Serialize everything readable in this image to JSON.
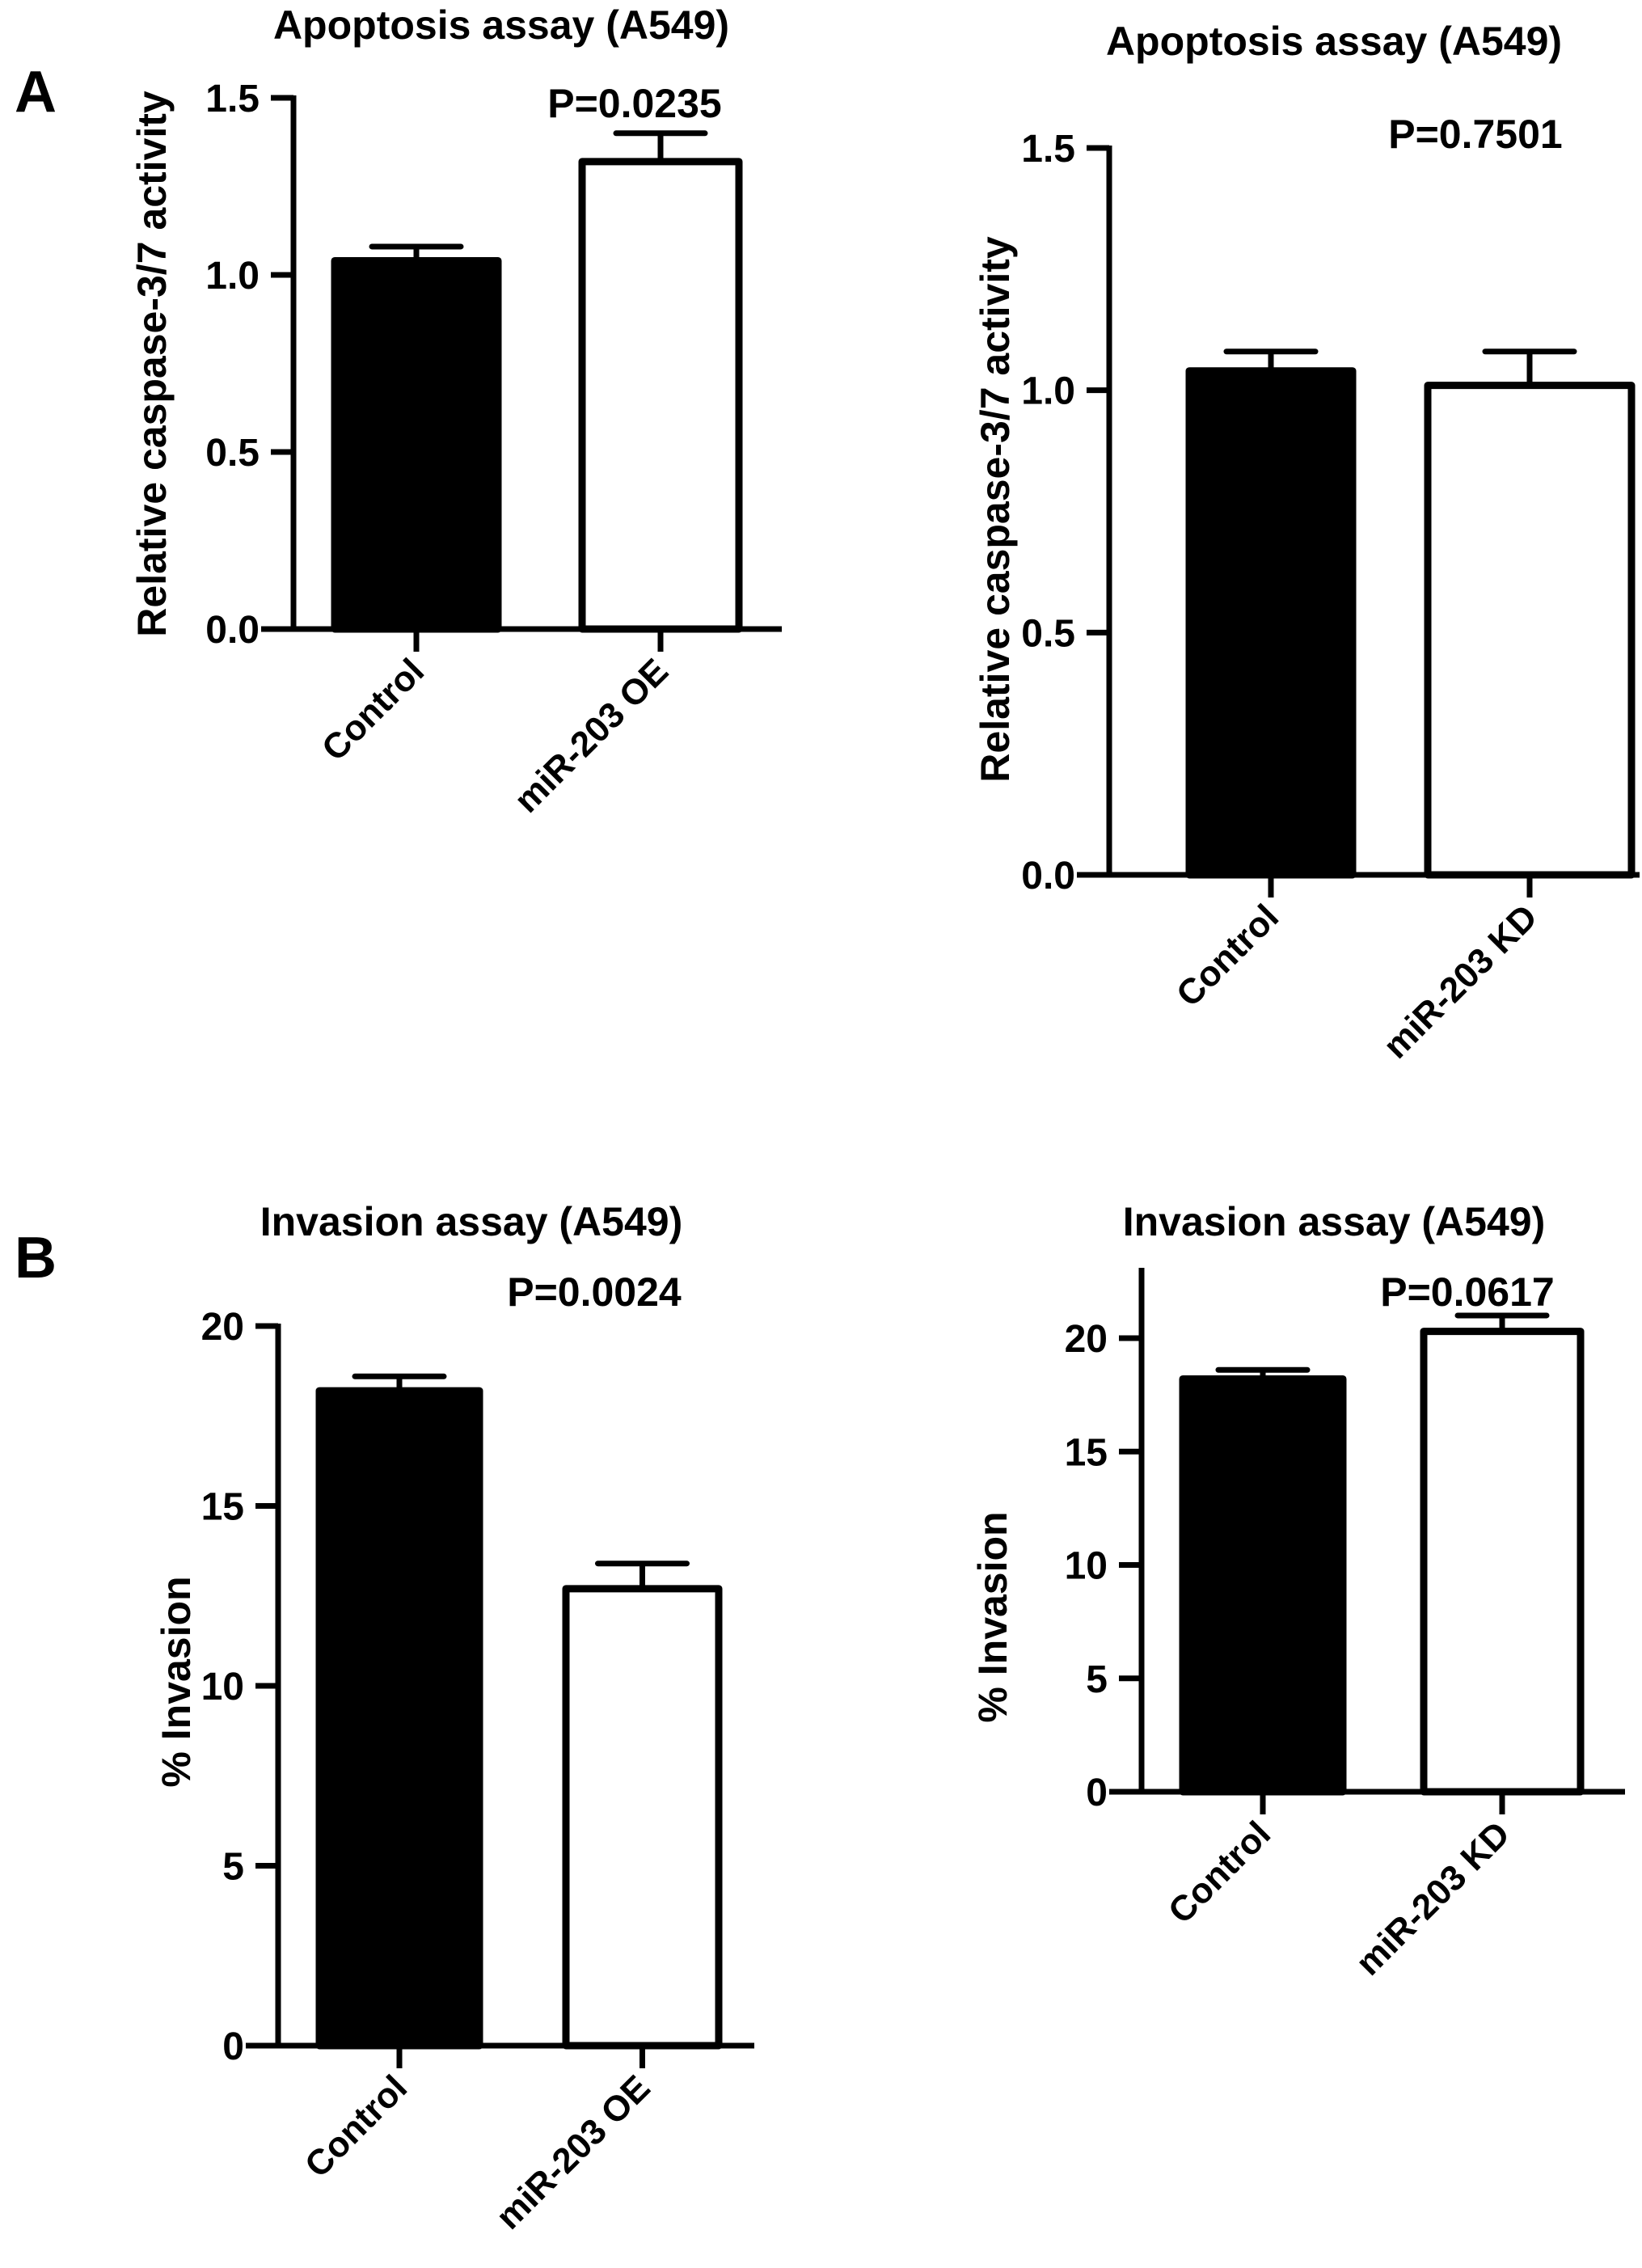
{
  "panel_labels": [
    "A",
    "B"
  ],
  "chart_data": [
    {
      "type": "bar",
      "panel": "A",
      "title": "Apoptosis assay (A549)",
      "annotation": "P=0.0235",
      "ylabel": "Relative caspase-3/7 activity",
      "categories": [
        "Control",
        "miR-203 OE"
      ],
      "values": [
        1.04,
        1.32
      ],
      "errors": [
        0.04,
        0.08
      ],
      "fills": [
        "#000000",
        "#ffffff"
      ],
      "ylim": [
        0,
        1.5
      ],
      "yticks": [
        0.0,
        0.5,
        1.0,
        1.5
      ],
      "ytick_labels": [
        "0.0",
        "0.5",
        "1.0",
        "1.5"
      ],
      "grid": false
    },
    {
      "type": "bar",
      "panel": "A",
      "title": "Apoptosis assay (A549)",
      "annotation": "P=0.7501",
      "ylabel": "Relative caspase-3/7 activity",
      "categories": [
        "Control",
        "miR-203 KD"
      ],
      "values": [
        1.04,
        1.01
      ],
      "errors": [
        0.04,
        0.07
      ],
      "fills": [
        "#000000",
        "#ffffff"
      ],
      "ylim": [
        0,
        1.5
      ],
      "yticks": [
        0.0,
        0.5,
        1.0,
        1.5
      ],
      "ytick_labels": [
        "0.0",
        "0.5",
        "1.0",
        "1.5"
      ],
      "grid": false
    },
    {
      "type": "bar",
      "panel": "B",
      "title": "Invasion assay (A549)",
      "annotation": "P=0.0024",
      "ylabel": "% Invasion",
      "categories": [
        "Control",
        "miR-203 OE"
      ],
      "values": [
        18.2,
        12.7
      ],
      "errors": [
        0.4,
        0.7
      ],
      "fills": [
        "#000000",
        "#ffffff"
      ],
      "ylim": [
        0,
        20
      ],
      "yticks": [
        0,
        5,
        10,
        15,
        20
      ],
      "ytick_labels": [
        "0",
        "5",
        "10",
        "15",
        "20"
      ],
      "grid": false
    },
    {
      "type": "bar",
      "panel": "B",
      "title": "Invasion assay (A549)",
      "annotation": "P=0.0617",
      "ylabel": "% Invasion",
      "categories": [
        "Control",
        "miR-203 KD"
      ],
      "values": [
        18.2,
        20.3
      ],
      "errors": [
        0.4,
        0.7
      ],
      "fills": [
        "#000000",
        "#ffffff"
      ],
      "ylim": [
        0,
        23
      ],
      "yticks": [
        0,
        5,
        10,
        15,
        20
      ],
      "ytick_labels": [
        "0",
        "5",
        "10",
        "15",
        "20"
      ],
      "grid": false
    }
  ]
}
